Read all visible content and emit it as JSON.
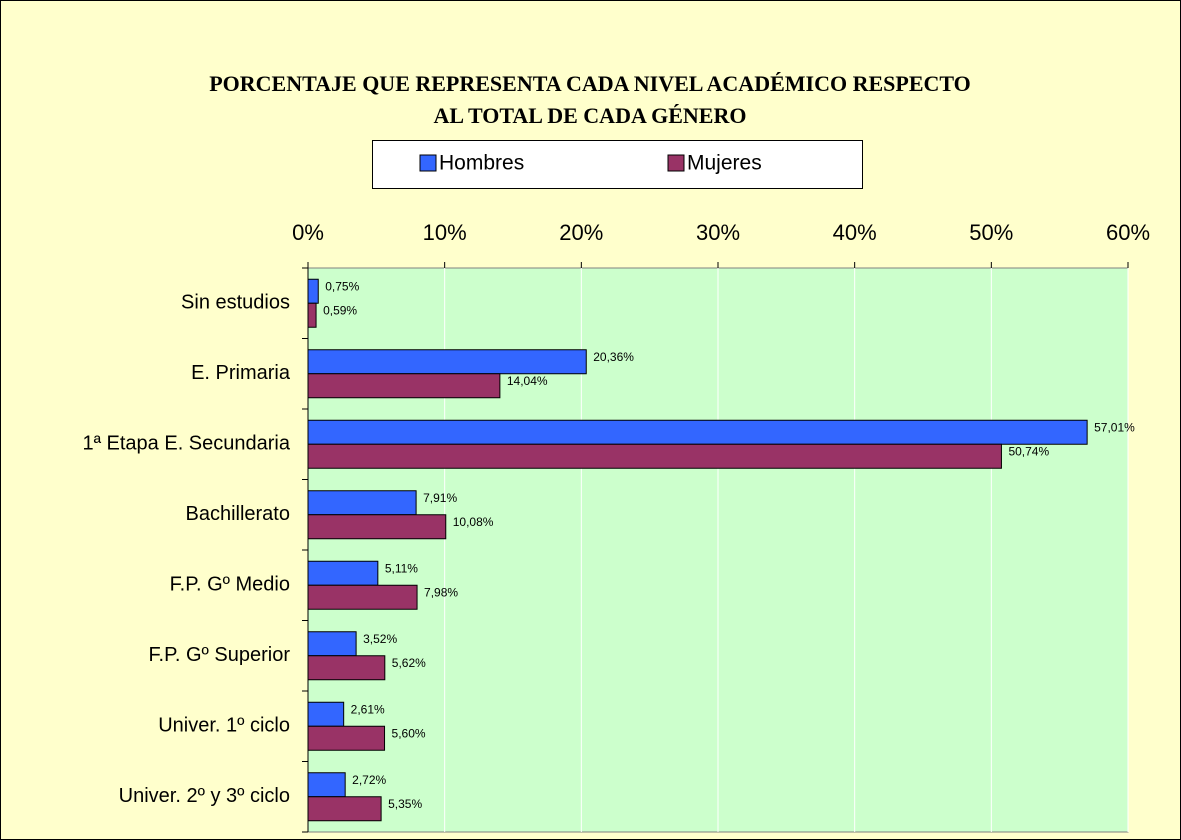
{
  "chart_data": {
    "type": "barh",
    "title": [
      "PORCENTAJE QUE REPRESENTA CADA NIVEL ACADÉMICO RESPECTO",
      "AL TOTAL DE CADA GÉNERO"
    ],
    "categories": [
      "Sin estudios",
      "E. Primaria",
      "1ª Etapa E. Secundaria",
      "Bachillerato",
      "F.P. Gº Medio",
      "F.P. Gº Superior",
      "Univer. 1º ciclo",
      "Univer. 2º y 3º ciclo"
    ],
    "series": [
      {
        "name": "Hombres",
        "color": "#3366ff",
        "values": [
          0.75,
          20.36,
          57.01,
          7.91,
          5.11,
          3.52,
          2.61,
          2.72
        ],
        "value_labels": [
          "0,75%",
          "20,36%",
          "57,01%",
          "7,91%",
          "5,11%",
          "3,52%",
          "2,61%",
          "2,72%"
        ]
      },
      {
        "name": "Mujeres",
        "color": "#993366",
        "values": [
          0.59,
          14.04,
          50.74,
          10.08,
          7.98,
          5.62,
          5.6,
          5.35
        ],
        "value_labels": [
          "0,59%",
          "14,04%",
          "50,74%",
          "10,08%",
          "7,98%",
          "5,62%",
          "5,60%",
          "5,35%"
        ]
      }
    ],
    "xlim": [
      0,
      60
    ],
    "xticks": [
      {
        "value": 0,
        "label": "0%"
      },
      {
        "value": 10,
        "label": "10%"
      },
      {
        "value": 20,
        "label": "20%"
      },
      {
        "value": 30,
        "label": "30%"
      },
      {
        "value": 40,
        "label": "40%"
      },
      {
        "value": 50,
        "label": "50%"
      },
      {
        "value": 60,
        "label": "60%"
      }
    ],
    "grid": true,
    "legend": "top"
  }
}
